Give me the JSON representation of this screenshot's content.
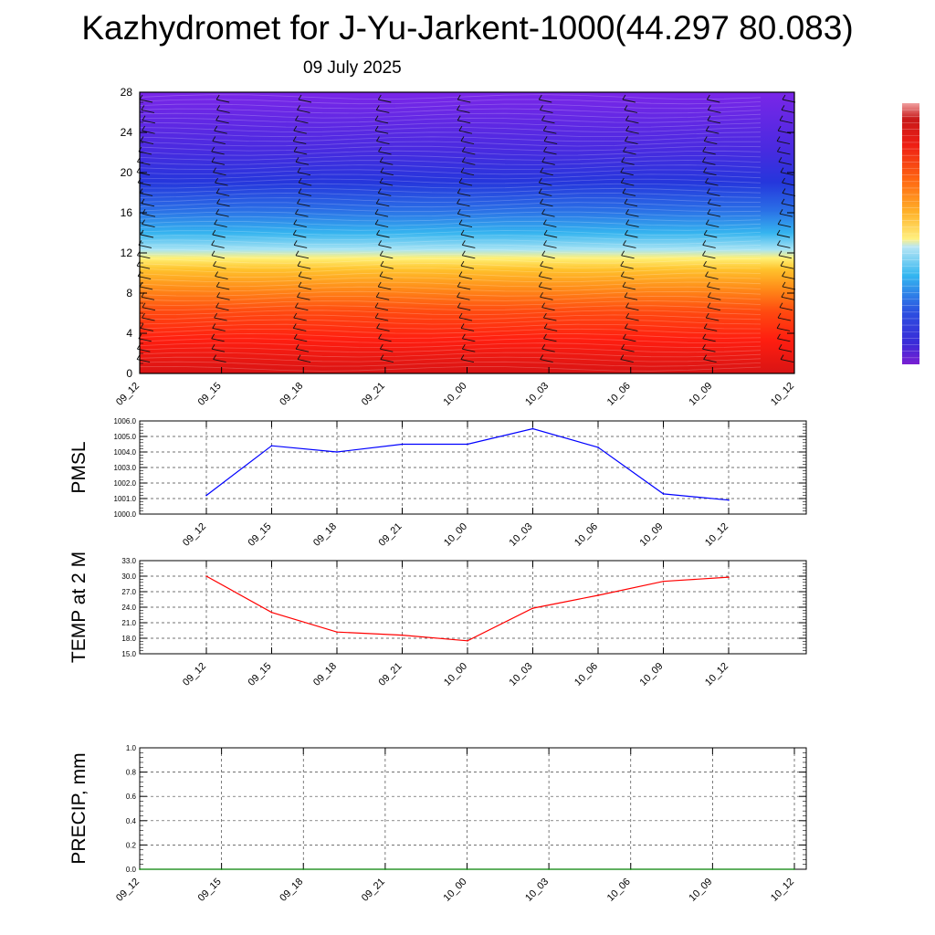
{
  "title": "Kazhydromet for J-Yu-Jarkent-1000(44.297 80.083)",
  "subtitle": "09 July 2025",
  "chart_data": [
    {
      "type": "heatmap",
      "ylim": [
        0,
        28
      ],
      "yticks": [
        "0",
        "4",
        "8",
        "12",
        "16",
        "20",
        "24",
        "28"
      ],
      "xticks": [
        "09_12",
        "09_15",
        "09_18",
        "09_21",
        "10_00",
        "10_03",
        "10_06",
        "10_09",
        "10_12"
      ],
      "colorbar": [
        "#7a1fa2",
        "#3a2bd8",
        "#2b3fe0",
        "#2d7be8",
        "#33b6f0",
        "#9ad8f2",
        "#fff080",
        "#ffd23a",
        "#ffa31f",
        "#ff6a12",
        "#ff2a10",
        "#e51818",
        "#c81a1a",
        "#f08070"
      ],
      "colorbar_labels": false,
      "wind_barbs": true
    },
    {
      "type": "line",
      "ylabel": "PMSL",
      "x": [
        "09_12",
        "09_15",
        "09_18",
        "09_21",
        "10_00",
        "10_03",
        "10_06",
        "10_09",
        "10_12"
      ],
      "yticks": [
        "1000.0",
        "1001.0",
        "1002.0",
        "1003.0",
        "1004.0",
        "1005.0",
        "1006.0"
      ],
      "ylim": [
        1000,
        1006
      ],
      "values": [
        1001.2,
        1004.4,
        1004.0,
        1004.5,
        1004.5,
        1005.5,
        1004.3,
        1001.3,
        1000.9
      ],
      "color": "#0000ff",
      "grid": true
    },
    {
      "type": "line",
      "ylabel": "TEMP at 2 M",
      "x": [
        "09_12",
        "09_15",
        "09_18",
        "09_21",
        "10_00",
        "10_03",
        "10_06",
        "10_09",
        "10_12"
      ],
      "yticks": [
        "15.0",
        "18.0",
        "21.0",
        "24.0",
        "27.0",
        "30.0",
        "33.0"
      ],
      "ylim": [
        15,
        33
      ],
      "values": [
        30.0,
        23.0,
        19.2,
        18.6,
        17.5,
        23.8,
        26.3,
        29.0,
        29.8
      ],
      "color": "#ff0000",
      "grid": true
    },
    {
      "type": "line",
      "ylabel": "PRECIP, mm",
      "x": [
        "09_12",
        "09_15",
        "09_18",
        "09_21",
        "10_00",
        "10_03",
        "10_06",
        "10_09",
        "10_12"
      ],
      "yticks": [
        "0.0",
        "0.2",
        "0.4",
        "0.6",
        "0.8",
        "1.0"
      ],
      "ylim": [
        0,
        1
      ],
      "values": [
        0,
        0,
        0,
        0,
        0,
        0,
        0,
        0,
        0
      ],
      "color": "#008000",
      "grid": true
    }
  ]
}
